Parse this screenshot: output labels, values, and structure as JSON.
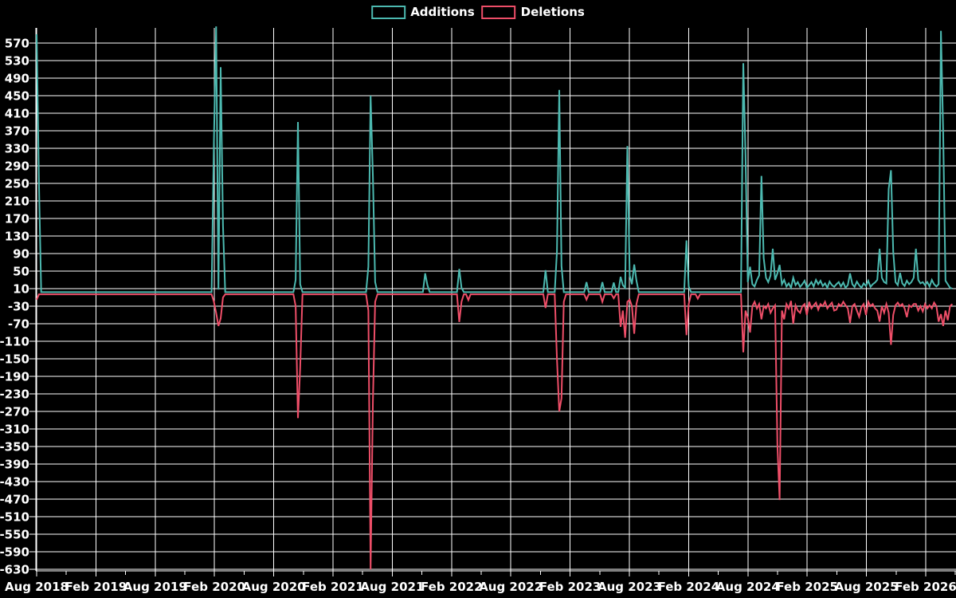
{
  "page": {
    "background": "#000000",
    "grid_color": "#ffffff",
    "text_color": "#ffffff"
  },
  "legend": {
    "items": [
      {
        "label": "Additions",
        "color": "#4cb9b0"
      },
      {
        "label": "Deletions",
        "color": "#ee4e68"
      }
    ]
  },
  "chart_data": {
    "type": "line",
    "title": "",
    "xlabel": "",
    "ylabel": "",
    "grid": true,
    "legend_position": "top-center",
    "x_axis": {
      "unit": "week",
      "tick_interval": "6 months",
      "tick_labels": [
        "Aug 2018",
        "Feb 2019",
        "Aug 2019",
        "Feb 2020",
        "Aug 2020",
        "Feb 2021",
        "Aug 2021",
        "Feb 2022",
        "Aug 2022",
        "Feb 2023",
        "Aug 2023",
        "Feb 2024",
        "Aug 2024",
        "Feb 2025",
        "Aug 2025",
        "Feb 2026"
      ]
    },
    "y_axis": {
      "tick_labels": [
        570,
        530,
        490,
        450,
        410,
        370,
        330,
        290,
        250,
        210,
        170,
        130,
        90,
        50,
        10,
        -30,
        -70,
        -110,
        -150,
        -190,
        -230,
        -270,
        -310,
        -350,
        -390,
        -430,
        -470,
        -510,
        -550,
        -590,
        -630
      ],
      "range": [
        -646,
        614
      ]
    },
    "n_weeks": 404,
    "baseline": {
      "additions": 2,
      "deletions": -3
    },
    "series": [
      {
        "name": "Additions",
        "color": "#4cb9b0",
        "points": [
          [
            0,
            590
          ],
          [
            1,
            250
          ],
          [
            78,
            345
          ],
          [
            79,
            608
          ],
          [
            80,
            8
          ],
          [
            81,
            515
          ],
          [
            82,
            154
          ],
          [
            114,
            30
          ],
          [
            115,
            390
          ],
          [
            116,
            20
          ],
          [
            146,
            60
          ],
          [
            147,
            450
          ],
          [
            148,
            265
          ],
          [
            149,
            25
          ],
          [
            171,
            45
          ],
          [
            172,
            18
          ],
          [
            186,
            55
          ],
          [
            187,
            12
          ],
          [
            224,
            52
          ],
          [
            229,
            95
          ],
          [
            230,
            463
          ],
          [
            231,
            62
          ],
          [
            242,
            25
          ],
          [
            249,
            25
          ],
          [
            254,
            24
          ],
          [
            257,
            37
          ],
          [
            258,
            18
          ],
          [
            259,
            12
          ],
          [
            260,
            335
          ],
          [
            261,
            40
          ],
          [
            262,
            20
          ],
          [
            263,
            65
          ],
          [
            264,
            28
          ],
          [
            286,
            120
          ],
          [
            287,
            15
          ],
          [
            311,
            524
          ],
          [
            312,
            313
          ],
          [
            313,
            25
          ],
          [
            314,
            60
          ],
          [
            315,
            20
          ],
          [
            316,
            15
          ],
          [
            317,
            30
          ],
          [
            318,
            40
          ],
          [
            319,
            267
          ],
          [
            320,
            80
          ],
          [
            321,
            35
          ],
          [
            322,
            25
          ],
          [
            323,
            40
          ],
          [
            324,
            101
          ],
          [
            325,
            30
          ],
          [
            326,
            45
          ],
          [
            327,
            64
          ],
          [
            328,
            20
          ],
          [
            329,
            30
          ],
          [
            330,
            15
          ],
          [
            331,
            22
          ],
          [
            332,
            12
          ],
          [
            333,
            35
          ],
          [
            334,
            18
          ],
          [
            335,
            25
          ],
          [
            336,
            14
          ],
          [
            337,
            20
          ],
          [
            338,
            28
          ],
          [
            339,
            12
          ],
          [
            340,
            18
          ],
          [
            341,
            25
          ],
          [
            342,
            15
          ],
          [
            343,
            30
          ],
          [
            344,
            20
          ],
          [
            345,
            28
          ],
          [
            346,
            16
          ],
          [
            347,
            22
          ],
          [
            348,
            12
          ],
          [
            349,
            26
          ],
          [
            350,
            18
          ],
          [
            351,
            14
          ],
          [
            352,
            20
          ],
          [
            353,
            25
          ],
          [
            354,
            15
          ],
          [
            355,
            24
          ],
          [
            356,
            12
          ],
          [
            357,
            18
          ],
          [
            358,
            45
          ],
          [
            359,
            20
          ],
          [
            360,
            14
          ],
          [
            361,
            26
          ],
          [
            362,
            18
          ],
          [
            363,
            12
          ],
          [
            364,
            22
          ],
          [
            365,
            16
          ],
          [
            366,
            28
          ],
          [
            367,
            14
          ],
          [
            368,
            20
          ],
          [
            369,
            24
          ],
          [
            370,
            30
          ],
          [
            371,
            101
          ],
          [
            372,
            35
          ],
          [
            373,
            25
          ],
          [
            374,
            22
          ],
          [
            375,
            237
          ],
          [
            376,
            280
          ],
          [
            377,
            95
          ],
          [
            378,
            25
          ],
          [
            379,
            18
          ],
          [
            380,
            46
          ],
          [
            381,
            22
          ],
          [
            382,
            16
          ],
          [
            383,
            28
          ],
          [
            384,
            20
          ],
          [
            385,
            25
          ],
          [
            386,
            35
          ],
          [
            387,
            101
          ],
          [
            388,
            30
          ],
          [
            389,
            22
          ],
          [
            390,
            25
          ],
          [
            391,
            18
          ],
          [
            392,
            25
          ],
          [
            393,
            15
          ],
          [
            394,
            30
          ],
          [
            395,
            20
          ],
          [
            396,
            15
          ],
          [
            397,
            20
          ],
          [
            398,
            598
          ],
          [
            399,
            367
          ],
          [
            400,
            28
          ],
          [
            401,
            20
          ],
          [
            402,
            12
          ],
          [
            403,
            10
          ]
        ]
      },
      {
        "name": "Deletions",
        "color": "#ee4e68",
        "points": [
          [
            0,
            -15
          ],
          [
            78,
            -20
          ],
          [
            79,
            -45
          ],
          [
            80,
            -75
          ],
          [
            81,
            -58
          ],
          [
            82,
            -10
          ],
          [
            114,
            -30
          ],
          [
            115,
            -285
          ],
          [
            116,
            -170
          ],
          [
            146,
            -40
          ],
          [
            147,
            -630
          ],
          [
            148,
            -245
          ],
          [
            149,
            -20
          ],
          [
            186,
            -66
          ],
          [
            187,
            -20
          ],
          [
            190,
            -16
          ],
          [
            224,
            -34
          ],
          [
            229,
            -150
          ],
          [
            230,
            -270
          ],
          [
            231,
            -240
          ],
          [
            232,
            -20
          ],
          [
            242,
            -15
          ],
          [
            249,
            -20
          ],
          [
            254,
            -12
          ],
          [
            257,
            -77
          ],
          [
            258,
            -40
          ],
          [
            259,
            -102
          ],
          [
            260,
            -20
          ],
          [
            261,
            -15
          ],
          [
            262,
            -30
          ],
          [
            263,
            -93
          ],
          [
            264,
            -25
          ],
          [
            286,
            -96
          ],
          [
            287,
            -25
          ],
          [
            291,
            -13
          ],
          [
            311,
            -135
          ],
          [
            312,
            -40
          ],
          [
            313,
            -57
          ],
          [
            314,
            -90
          ],
          [
            315,
            -30
          ],
          [
            316,
            -20
          ],
          [
            317,
            -35
          ],
          [
            318,
            -25
          ],
          [
            319,
            -60
          ],
          [
            320,
            -30
          ],
          [
            321,
            -35
          ],
          [
            322,
            -25
          ],
          [
            323,
            -45
          ],
          [
            324,
            -35
          ],
          [
            325,
            -28
          ],
          [
            326,
            -345
          ],
          [
            327,
            -472
          ],
          [
            328,
            -40
          ],
          [
            329,
            -60
          ],
          [
            330,
            -25
          ],
          [
            331,
            -35
          ],
          [
            332,
            -18
          ],
          [
            333,
            -70
          ],
          [
            334,
            -28
          ],
          [
            335,
            -40
          ],
          [
            336,
            -45
          ],
          [
            337,
            -30
          ],
          [
            338,
            -25
          ],
          [
            339,
            -50
          ],
          [
            340,
            -20
          ],
          [
            341,
            -35
          ],
          [
            342,
            -28
          ],
          [
            343,
            -22
          ],
          [
            344,
            -38
          ],
          [
            345,
            -25
          ],
          [
            346,
            -30
          ],
          [
            347,
            -20
          ],
          [
            348,
            -35
          ],
          [
            349,
            -28
          ],
          [
            350,
            -22
          ],
          [
            351,
            -40
          ],
          [
            352,
            -38
          ],
          [
            353,
            -25
          ],
          [
            354,
            -30
          ],
          [
            355,
            -20
          ],
          [
            356,
            -28
          ],
          [
            357,
            -35
          ],
          [
            358,
            -68
          ],
          [
            359,
            -30
          ],
          [
            360,
            -25
          ],
          [
            361,
            -40
          ],
          [
            362,
            -54
          ],
          [
            363,
            -32
          ],
          [
            364,
            -25
          ],
          [
            365,
            -50
          ],
          [
            366,
            -20
          ],
          [
            367,
            -30
          ],
          [
            368,
            -25
          ],
          [
            369,
            -35
          ],
          [
            370,
            -40
          ],
          [
            371,
            -65
          ],
          [
            372,
            -30
          ],
          [
            373,
            -45
          ],
          [
            374,
            -25
          ],
          [
            375,
            -45
          ],
          [
            376,
            -118
          ],
          [
            377,
            -50
          ],
          [
            378,
            -28
          ],
          [
            379,
            -22
          ],
          [
            380,
            -30
          ],
          [
            381,
            -25
          ],
          [
            382,
            -35
          ],
          [
            383,
            -55
          ],
          [
            384,
            -28
          ],
          [
            385,
            -32
          ],
          [
            386,
            -25
          ],
          [
            387,
            -25
          ],
          [
            388,
            -40
          ],
          [
            389,
            -30
          ],
          [
            390,
            -42
          ],
          [
            391,
            -25
          ],
          [
            392,
            -35
          ],
          [
            393,
            -28
          ],
          [
            394,
            -35
          ],
          [
            395,
            -22
          ],
          [
            396,
            -30
          ],
          [
            397,
            -65
          ],
          [
            398,
            -48
          ],
          [
            399,
            -75
          ],
          [
            400,
            -40
          ],
          [
            401,
            -62
          ],
          [
            402,
            -30
          ],
          [
            403,
            -25
          ]
        ]
      }
    ]
  }
}
